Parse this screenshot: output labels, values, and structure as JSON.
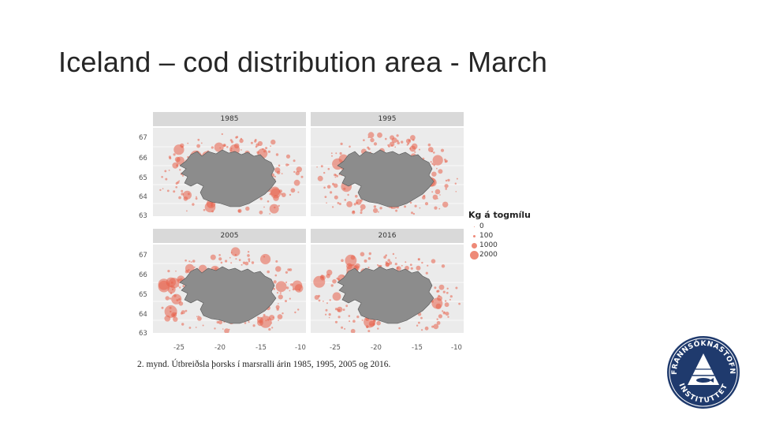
{
  "slide": {
    "title": "Iceland – cod distribution area - March"
  },
  "figure": {
    "panels": [
      {
        "year": "1985"
      },
      {
        "year": "1995"
      },
      {
        "year": "2005"
      },
      {
        "year": "2016"
      }
    ],
    "y_ticks": [
      "67",
      "66",
      "65",
      "64",
      "63"
    ],
    "x_ticks": [
      "-25",
      "-20",
      "-15",
      "-10"
    ],
    "legend": {
      "title": "Kg á togmílu",
      "items": [
        {
          "label": "0",
          "size": 1
        },
        {
          "label": "100",
          "size": 3
        },
        {
          "label": "1000",
          "size": 7
        },
        {
          "label": "2000",
          "size": 11
        }
      ]
    },
    "caption": "2. mynd. Útbreiðsla þorsks í marsralli árin 1985, 1995, 2005 og 2016.",
    "colors": {
      "panel_bg": "#ebebeb",
      "strip_bg": "#d9d9d9",
      "land": "#8c8c8c",
      "dots": "#e8614a"
    }
  },
  "logo": {
    "name": "hafrannsoknastofnun-logo-icon",
    "top_text": "HAFRANNSÓKNASTOFNUN",
    "bottom_text": "INSTITUTTET",
    "color": "#1f3a6d"
  }
}
